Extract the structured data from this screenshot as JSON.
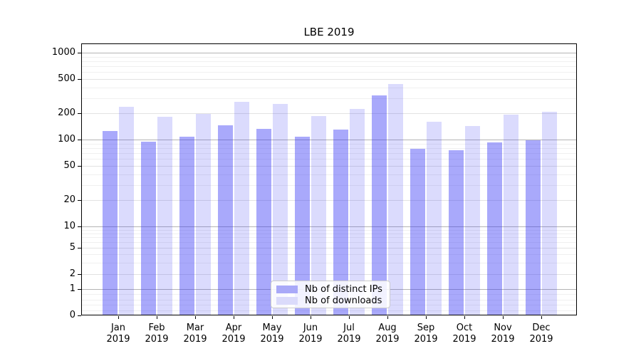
{
  "chart_data": {
    "type": "bar",
    "title": "LBE 2019",
    "categories": [
      "Jan",
      "Feb",
      "Mar",
      "Apr",
      "May",
      "Jun",
      "Jul",
      "Aug",
      "Sep",
      "Oct",
      "Nov",
      "Dec"
    ],
    "year_label": "2019",
    "series": [
      {
        "name": "Nb of distinct IPs",
        "color": "#a9a9f8",
        "bar_rgba": "rgba(55,55,245,0.43)",
        "values": [
          125,
          95,
          108,
          146,
          133,
          108,
          130,
          322,
          78,
          75,
          93,
          98
        ]
      },
      {
        "name": "Nb of downloads",
        "color": "#dbdbfb",
        "bar_rgba": "rgba(55,55,245,0.18)",
        "values": [
          238,
          183,
          197,
          272,
          257,
          186,
          225,
          436,
          160,
          143,
          194,
          209
        ]
      }
    ],
    "yscale": "symlog",
    "yticks": [
      1000,
      500,
      200,
      100,
      50,
      20,
      10,
      5,
      2,
      1,
      0
    ],
    "ylim": [
      0,
      1280
    ],
    "grid": true,
    "grid_major_color": "#b4b4b4",
    "grid_minor_color": "#e2e2e2",
    "legend_position": "lower-center"
  }
}
